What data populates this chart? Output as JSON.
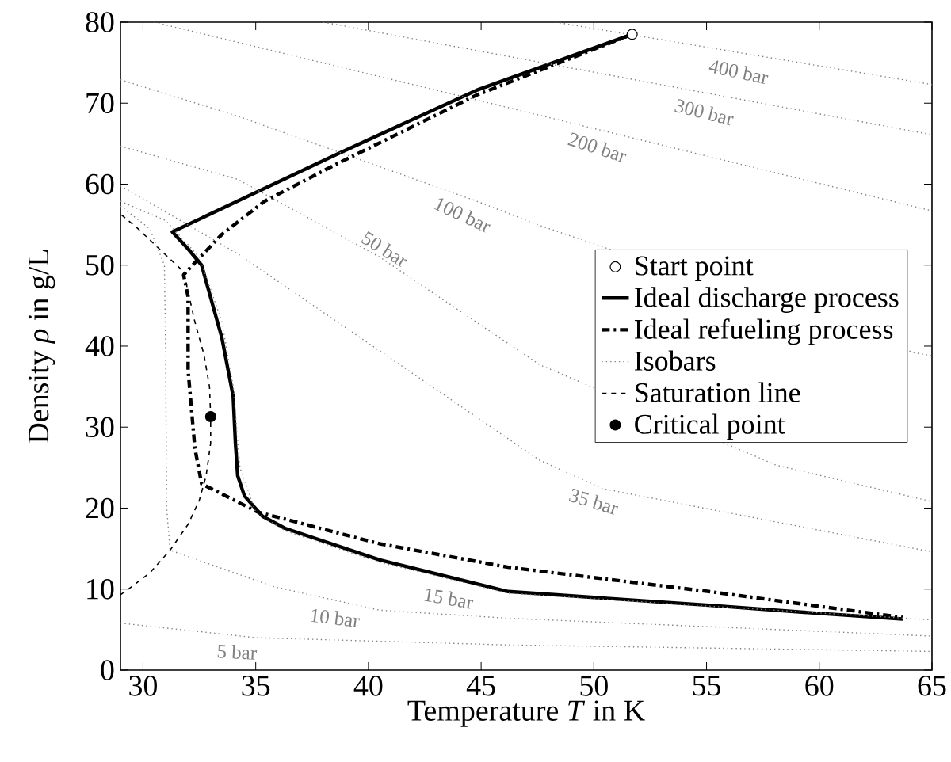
{
  "chart_data": {
    "type": "line",
    "xlabel": "Temperature *T* in K",
    "ylabel": "Density *ρ* in g/L",
    "xlim": [
      29,
      65
    ],
    "ylim": [
      0,
      80
    ],
    "xticks": [
      30,
      35,
      40,
      45,
      50,
      55,
      60,
      65
    ],
    "yticks": [
      0,
      10,
      20,
      30,
      40,
      50,
      60,
      70,
      80
    ],
    "legend": "right",
    "series": [
      {
        "name": "Start point",
        "type": "scatter",
        "marker": "circle",
        "color": "#000000",
        "x": [
          51.7
        ],
        "values": [
          78.5
        ]
      },
      {
        "name": "Ideal discharge process",
        "line_style": "solid",
        "color": "#000000",
        "x": [
          51.7,
          44.8,
          38.6,
          31.3,
          32.0,
          32.6,
          33.5,
          34.0,
          34.1,
          34.2,
          34.5,
          35.3,
          36.3,
          40.5,
          46.2,
          55.1,
          60.0,
          63.7
        ],
        "values": [
          78.5,
          71.6,
          63.7,
          54.1,
          52.0,
          50.0,
          41.0,
          33.8,
          28.0,
          24.0,
          21.5,
          19.0,
          17.5,
          13.6,
          9.7,
          8.0,
          7.0,
          6.3
        ]
      },
      {
        "name": "Ideal refueling process",
        "line_style": "dashdot",
        "color": "#000000",
        "x": [
          51.7,
          44.8,
          38.6,
          35.4,
          33.5,
          32.4,
          31.8,
          32.0,
          32.0,
          32.3,
          32.6,
          35.1,
          40.5,
          46.2,
          55.1,
          63.7
        ],
        "values": [
          78.5,
          71.0,
          62.5,
          57.9,
          53.8,
          50.6,
          48.8,
          46.1,
          37.0,
          27.4,
          23.0,
          19.5,
          15.6,
          12.7,
          9.7,
          6.5
        ]
      },
      {
        "name": "Isobars",
        "line_style": "dotted",
        "color": "#808080",
        "x": [
          29,
          35,
          46.2,
          65
        ],
        "values": [
          5.8,
          4.0,
          3.1,
          2.3
        ]
      },
      {
        "name": "Saturation line",
        "line_style": "dashed",
        "color": "#000000",
        "x": [
          29,
          29.5,
          30.3,
          31.2,
          32.0,
          32.5,
          32.8,
          33.0,
          33.0,
          32.95,
          32.7,
          32.3,
          31.8,
          30.8,
          29.7,
          29
        ],
        "values": [
          9.3,
          10.3,
          12.0,
          14.8,
          18.0,
          21.0,
          24.0,
          28.0,
          31.3,
          35.0,
          39.0,
          43.0,
          49.2,
          51.8,
          54.7,
          56.3
        ]
      },
      {
        "name": "Critical point",
        "type": "scatter",
        "marker": "circle",
        "color": "#000000",
        "x": [
          33.0
        ],
        "values": [
          31.3
        ]
      },
      {
        "line_style": "dotted",
        "color": "#808080",
        "x": [
          29,
          30.3,
          30.95,
          31.0,
          31.05,
          31.2,
          35.8,
          40.5,
          46.2,
          65
        ],
        "values": [
          57.3,
          54.5,
          50.0,
          40.0,
          20.0,
          14.8,
          10.3,
          7.4,
          6.4,
          4.2
        ]
      },
      {
        "line_style": "dotted",
        "color": "#808080",
        "x": [
          29,
          31,
          32.5,
          33.5,
          34.0,
          34.3,
          35.0,
          36.3,
          40.5,
          46.2,
          55.1,
          65
        ],
        "values": [
          57.9,
          55.5,
          51.0,
          43.0,
          35.0,
          25.0,
          19.5,
          17.2,
          13.3,
          9.5,
          7.9,
          6.2
        ]
      },
      {
        "line_style": "dotted",
        "color": "#808080",
        "x": [
          29,
          34.2,
          47.6,
          50.4,
          65
        ],
        "values": [
          59.8,
          51.4,
          25.9,
          22.4,
          14.6
        ]
      },
      {
        "line_style": "dotted",
        "color": "#808080",
        "x": [
          29,
          34.2,
          40.5,
          47.6,
          58.1,
          65
        ],
        "values": [
          64.7,
          60.6,
          51.0,
          37.7,
          25.3,
          20.8
        ]
      },
      {
        "line_style": "dotted",
        "color": "#808080",
        "x": [
          29,
          34.2,
          44.8,
          47.6,
          64.2,
          65
        ],
        "values": [
          72.9,
          68.4,
          57.9,
          54.9,
          39.2,
          38.8
        ]
      },
      {
        "line_style": "dotted",
        "color": "#808080",
        "x": [
          30.5,
          44.8,
          65
        ],
        "values": [
          80,
          70.4,
          56.7
        ]
      },
      {
        "line_style": "dotted",
        "color": "#808080",
        "x": [
          38,
          44.8,
          65
        ],
        "values": [
          80,
          76.5,
          66.1
        ]
      },
      {
        "line_style": "dotted",
        "color": "#808080",
        "x": [
          48.3,
          65
        ],
        "values": [
          80,
          72.3
        ]
      }
    ],
    "annotations": [
      {
        "text": "5 bar",
        "x": 34.2,
        "y": 4.2
      },
      {
        "text": "10 bar",
        "x": 38.6,
        "y": 8.6
      },
      {
        "text": "15 bar",
        "x": 43.7,
        "y": 11.2
      },
      {
        "text": "35 bar",
        "x": 50.2,
        "y": 22.7
      },
      {
        "text": "50 bar",
        "x": 40.5,
        "y": 51.0
      },
      {
        "text": "100 bar",
        "x": 44.5,
        "y": 58.2
      },
      {
        "text": "200 bar",
        "x": 50.4,
        "y": 66.6
      },
      {
        "text": "300 bar",
        "x": 55.1,
        "y": 71.2
      },
      {
        "text": "400 bar",
        "x": 56.6,
        "y": 76.2
      }
    ]
  }
}
